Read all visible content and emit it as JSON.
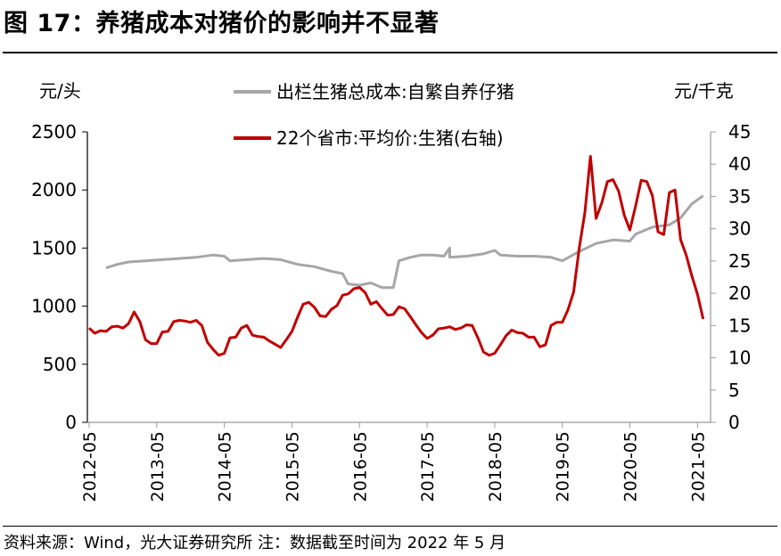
{
  "figure_title": "图 17：养猪成本对猪价的影响并不显著",
  "source_note": "资料来源：Wind，光大证券研究所 注：数据截至时间为 2022 年 5 月",
  "chart_data": {
    "type": "line",
    "left_unit": "元/头",
    "right_unit": "元/千克",
    "ylim_left": [
      0,
      2500
    ],
    "ylim_right": [
      0,
      45
    ],
    "yticks_left": [
      0,
      500,
      1000,
      1500,
      2000,
      2500
    ],
    "yticks_right": [
      0,
      5,
      10,
      15,
      20,
      25,
      30,
      35,
      40,
      45
    ],
    "xticks": [
      "2012-05",
      "2013-05",
      "2014-05",
      "2015-05",
      "2016-05",
      "2017-05",
      "2018-05",
      "2019-05",
      "2020-05",
      "2021-05"
    ],
    "grid": false,
    "legend_position": "top-center",
    "series": [
      {
        "name": "出栏生猪总成本:自繁自养仔猪",
        "axis": "left",
        "color": "#a6a6a6",
        "points": [
          [
            "2012-08",
            1330
          ],
          [
            "2012-10",
            1360
          ],
          [
            "2012-12",
            1380
          ],
          [
            "2013-03",
            1390
          ],
          [
            "2013-06",
            1400
          ],
          [
            "2013-09",
            1410
          ],
          [
            "2013-12",
            1420
          ],
          [
            "2014-03",
            1440
          ],
          [
            "2014-05",
            1430
          ],
          [
            "2014-06",
            1390
          ],
          [
            "2014-09",
            1400
          ],
          [
            "2014-12",
            1410
          ],
          [
            "2015-03",
            1400
          ],
          [
            "2015-06",
            1360
          ],
          [
            "2015-09",
            1340
          ],
          [
            "2015-12",
            1300
          ],
          [
            "2016-02",
            1280
          ],
          [
            "2016-03",
            1190
          ],
          [
            "2016-05",
            1180
          ],
          [
            "2016-07",
            1200
          ],
          [
            "2016-09",
            1160
          ],
          [
            "2016-11",
            1160
          ],
          [
            "2016-12",
            1390
          ],
          [
            "2017-02",
            1420
          ],
          [
            "2017-04",
            1440
          ],
          [
            "2017-06",
            1440
          ],
          [
            "2017-08",
            1430
          ],
          [
            "2017-09",
            1500
          ],
          [
            "2017-09",
            1420
          ],
          [
            "2017-12",
            1430
          ],
          [
            "2018-03",
            1450
          ],
          [
            "2018-05",
            1480
          ],
          [
            "2018-06",
            1440
          ],
          [
            "2018-09",
            1430
          ],
          [
            "2018-12",
            1430
          ],
          [
            "2019-03",
            1420
          ],
          [
            "2019-05",
            1390
          ],
          [
            "2019-08",
            1470
          ],
          [
            "2019-11",
            1540
          ],
          [
            "2020-02",
            1570
          ],
          [
            "2020-05",
            1560
          ],
          [
            "2020-06",
            1620
          ],
          [
            "2020-09",
            1680
          ],
          [
            "2020-12",
            1700
          ],
          [
            "2021-02",
            1760
          ],
          [
            "2021-04",
            1880
          ],
          [
            "2021-06",
            1950
          ]
        ]
      },
      {
        "name": "22个省市:平均价:生猪(右轴)",
        "axis": "right",
        "color": "#c00000",
        "points": [
          [
            "2012-05",
            14.6
          ],
          [
            "2012-06",
            13.8
          ],
          [
            "2012-07",
            14.2
          ],
          [
            "2012-08",
            14.1
          ],
          [
            "2012-09",
            14.8
          ],
          [
            "2012-10",
            14.9
          ],
          [
            "2012-11",
            14.6
          ],
          [
            "2012-12",
            15.3
          ],
          [
            "2013-01",
            17.1
          ],
          [
            "2013-02",
            15.6
          ],
          [
            "2013-03",
            12.8
          ],
          [
            "2013-04",
            12.2
          ],
          [
            "2013-05",
            12.2
          ],
          [
            "2013-06",
            14.0
          ],
          [
            "2013-07",
            14.1
          ],
          [
            "2013-08",
            15.6
          ],
          [
            "2013-09",
            15.8
          ],
          [
            "2013-10",
            15.7
          ],
          [
            "2013-11",
            15.5
          ],
          [
            "2013-12",
            15.8
          ],
          [
            "2014-01",
            15.0
          ],
          [
            "2014-02",
            12.4
          ],
          [
            "2014-03",
            11.3
          ],
          [
            "2014-04",
            10.4
          ],
          [
            "2014-05",
            10.7
          ],
          [
            "2014-06",
            13.1
          ],
          [
            "2014-07",
            13.2
          ],
          [
            "2014-08",
            14.6
          ],
          [
            "2014-09",
            15.0
          ],
          [
            "2014-10",
            13.5
          ],
          [
            "2014-11",
            13.3
          ],
          [
            "2014-12",
            13.2
          ],
          [
            "2015-01",
            12.6
          ],
          [
            "2015-02",
            12.1
          ],
          [
            "2015-03",
            11.6
          ],
          [
            "2015-04",
            12.8
          ],
          [
            "2015-05",
            14.1
          ],
          [
            "2015-06",
            16.3
          ],
          [
            "2015-07",
            18.3
          ],
          [
            "2015-08",
            18.6
          ],
          [
            "2015-09",
            17.8
          ],
          [
            "2015-10",
            16.5
          ],
          [
            "2015-11",
            16.4
          ],
          [
            "2015-12",
            17.5
          ],
          [
            "2016-01",
            18.1
          ],
          [
            "2016-02",
            19.7
          ],
          [
            "2016-03",
            19.9
          ],
          [
            "2016-04",
            20.7
          ],
          [
            "2016-05",
            20.9
          ],
          [
            "2016-06",
            20.1
          ],
          [
            "2016-07",
            18.3
          ],
          [
            "2016-08",
            18.7
          ],
          [
            "2016-09",
            17.6
          ],
          [
            "2016-10",
            16.6
          ],
          [
            "2016-11",
            16.7
          ],
          [
            "2016-12",
            17.9
          ],
          [
            "2017-01",
            17.6
          ],
          [
            "2017-02",
            16.4
          ],
          [
            "2017-03",
            15.1
          ],
          [
            "2017-04",
            13.9
          ],
          [
            "2017-05",
            13.0
          ],
          [
            "2017-06",
            13.5
          ],
          [
            "2017-07",
            14.5
          ],
          [
            "2017-08",
            14.6
          ],
          [
            "2017-09",
            14.8
          ],
          [
            "2017-10",
            14.4
          ],
          [
            "2017-11",
            14.6
          ],
          [
            "2017-12",
            15.1
          ],
          [
            "2018-01",
            15.0
          ],
          [
            "2018-02",
            13.1
          ],
          [
            "2018-03",
            10.9
          ],
          [
            "2018-04",
            10.4
          ],
          [
            "2018-05",
            10.7
          ],
          [
            "2018-06",
            12.0
          ],
          [
            "2018-07",
            13.4
          ],
          [
            "2018-08",
            14.3
          ],
          [
            "2018-09",
            13.9
          ],
          [
            "2018-10",
            13.8
          ],
          [
            "2018-11",
            13.2
          ],
          [
            "2018-12",
            13.2
          ],
          [
            "2019-01",
            11.7
          ],
          [
            "2019-02",
            12.0
          ],
          [
            "2019-03",
            15.0
          ],
          [
            "2019-04",
            15.5
          ],
          [
            "2019-05",
            15.5
          ],
          [
            "2019-06",
            17.4
          ],
          [
            "2019-07",
            20.2
          ],
          [
            "2019-08",
            27.0
          ],
          [
            "2019-09",
            32.5
          ],
          [
            "2019-10",
            41.2
          ],
          [
            "2019-11",
            31.6
          ],
          [
            "2019-12",
            34.0
          ],
          [
            "2020-01",
            37.3
          ],
          [
            "2020-02",
            37.6
          ],
          [
            "2020-03",
            35.8
          ],
          [
            "2020-04",
            32.1
          ],
          [
            "2020-05",
            29.8
          ],
          [
            "2020-06",
            33.5
          ],
          [
            "2020-07",
            37.5
          ],
          [
            "2020-08",
            37.3
          ],
          [
            "2020-09",
            35.1
          ],
          [
            "2020-10",
            29.5
          ],
          [
            "2020-11",
            29.1
          ],
          [
            "2020-12",
            35.6
          ],
          [
            "2021-01",
            36.0
          ],
          [
            "2021-02",
            28.3
          ],
          [
            "2021-03",
            25.9
          ],
          [
            "2021-04",
            22.7
          ],
          [
            "2021-05",
            19.8
          ],
          [
            "2021-06",
            16.0
          ]
        ]
      }
    ]
  }
}
